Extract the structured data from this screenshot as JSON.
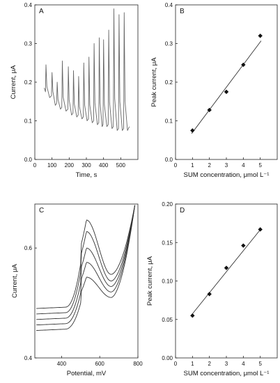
{
  "chart_data": [
    {
      "panel": "A",
      "type": "line",
      "xlabel": "Time, s",
      "ylabel": "Current, μA",
      "xlim": [
        0,
        600
      ],
      "ylim": [
        0,
        0.4
      ],
      "xticks": [
        "0",
        "100",
        "200",
        "300",
        "400",
        "500"
      ],
      "yticks": [
        "0.0",
        "0.1",
        "0.2",
        "0.3",
        "0.4"
      ],
      "peaks": [
        {
          "x": 65,
          "y": 0.245,
          "base": 0.17
        },
        {
          "x": 100,
          "y": 0.225,
          "base": 0.16
        },
        {
          "x": 130,
          "y": 0.2,
          "base": 0.14
        },
        {
          "x": 160,
          "y": 0.255,
          "base": 0.13
        },
        {
          "x": 195,
          "y": 0.24,
          "base": 0.125
        },
        {
          "x": 225,
          "y": 0.23,
          "base": 0.115
        },
        {
          "x": 255,
          "y": 0.215,
          "base": 0.11
        },
        {
          "x": 285,
          "y": 0.25,
          "base": 0.105
        },
        {
          "x": 315,
          "y": 0.265,
          "base": 0.1
        },
        {
          "x": 345,
          "y": 0.3,
          "base": 0.095
        },
        {
          "x": 375,
          "y": 0.315,
          "base": 0.09
        },
        {
          "x": 400,
          "y": 0.31,
          "base": 0.085
        },
        {
          "x": 430,
          "y": 0.335,
          "base": 0.085
        },
        {
          "x": 460,
          "y": 0.39,
          "base": 0.08
        },
        {
          "x": 490,
          "y": 0.375,
          "base": 0.075
        },
        {
          "x": 520,
          "y": 0.38,
          "base": 0.075
        }
      ],
      "end": {
        "x": 550,
        "y": 0.075
      }
    },
    {
      "panel": "B",
      "type": "scatter",
      "xlabel": "SUM concentration, μmol L⁻¹",
      "ylabel": "Peak current, μA",
      "xlim": [
        0,
        6
      ],
      "ylim": [
        0,
        0.4
      ],
      "xticks": [
        "0",
        "1",
        "2",
        "3",
        "4",
        "5"
      ],
      "yticks": [
        "0.0",
        "0.1",
        "0.2",
        "0.3",
        "0.4"
      ],
      "x": [
        1,
        2,
        3,
        4,
        5
      ],
      "y": [
        0.075,
        0.128,
        0.175,
        0.245,
        0.32
      ],
      "fit": [
        [
          0.95,
          0.067
        ],
        [
          5.05,
          0.307
        ]
      ]
    },
    {
      "panel": "C",
      "type": "line",
      "xlabel": "Potential, mV",
      "ylabel": "Current, μA",
      "xlim": [
        260,
        800
      ],
      "ylim": [
        0.4,
        0.68
      ],
      "xticks": [
        "400",
        "600",
        "800"
      ],
      "yticks": [
        "0.4",
        "0.6"
      ],
      "curves": [
        {
          "start": 0.49,
          "peak": 0.651,
          "vmin": 0.552
        },
        {
          "start": 0.48,
          "peak": 0.63,
          "vmin": 0.54
        },
        {
          "start": 0.47,
          "peak": 0.6,
          "vmin": 0.53
        },
        {
          "start": 0.46,
          "peak": 0.574,
          "vmin": 0.52
        },
        {
          "start": 0.45,
          "peak": 0.547,
          "vmin": 0.51
        }
      ],
      "peak_x": 530,
      "vmin_x": 660,
      "end": {
        "x": 785,
        "y": 0.68
      }
    },
    {
      "panel": "D",
      "type": "scatter",
      "xlabel": "SUM concentration, μmol L⁻¹",
      "ylabel": "Peak current, μA",
      "xlim": [
        0,
        6
      ],
      "ylim": [
        0,
        0.2
      ],
      "xticks": [
        "0",
        "1",
        "2",
        "3",
        "4",
        "5"
      ],
      "yticks": [
        "0.00",
        "0.05",
        "0.10",
        "0.15",
        "0.20"
      ],
      "x": [
        1,
        2,
        3,
        4,
        5
      ],
      "y": [
        0.055,
        0.083,
        0.117,
        0.146,
        0.167
      ],
      "fit": [
        [
          0.95,
          0.056
        ],
        [
          5.05,
          0.168
        ]
      ]
    }
  ]
}
